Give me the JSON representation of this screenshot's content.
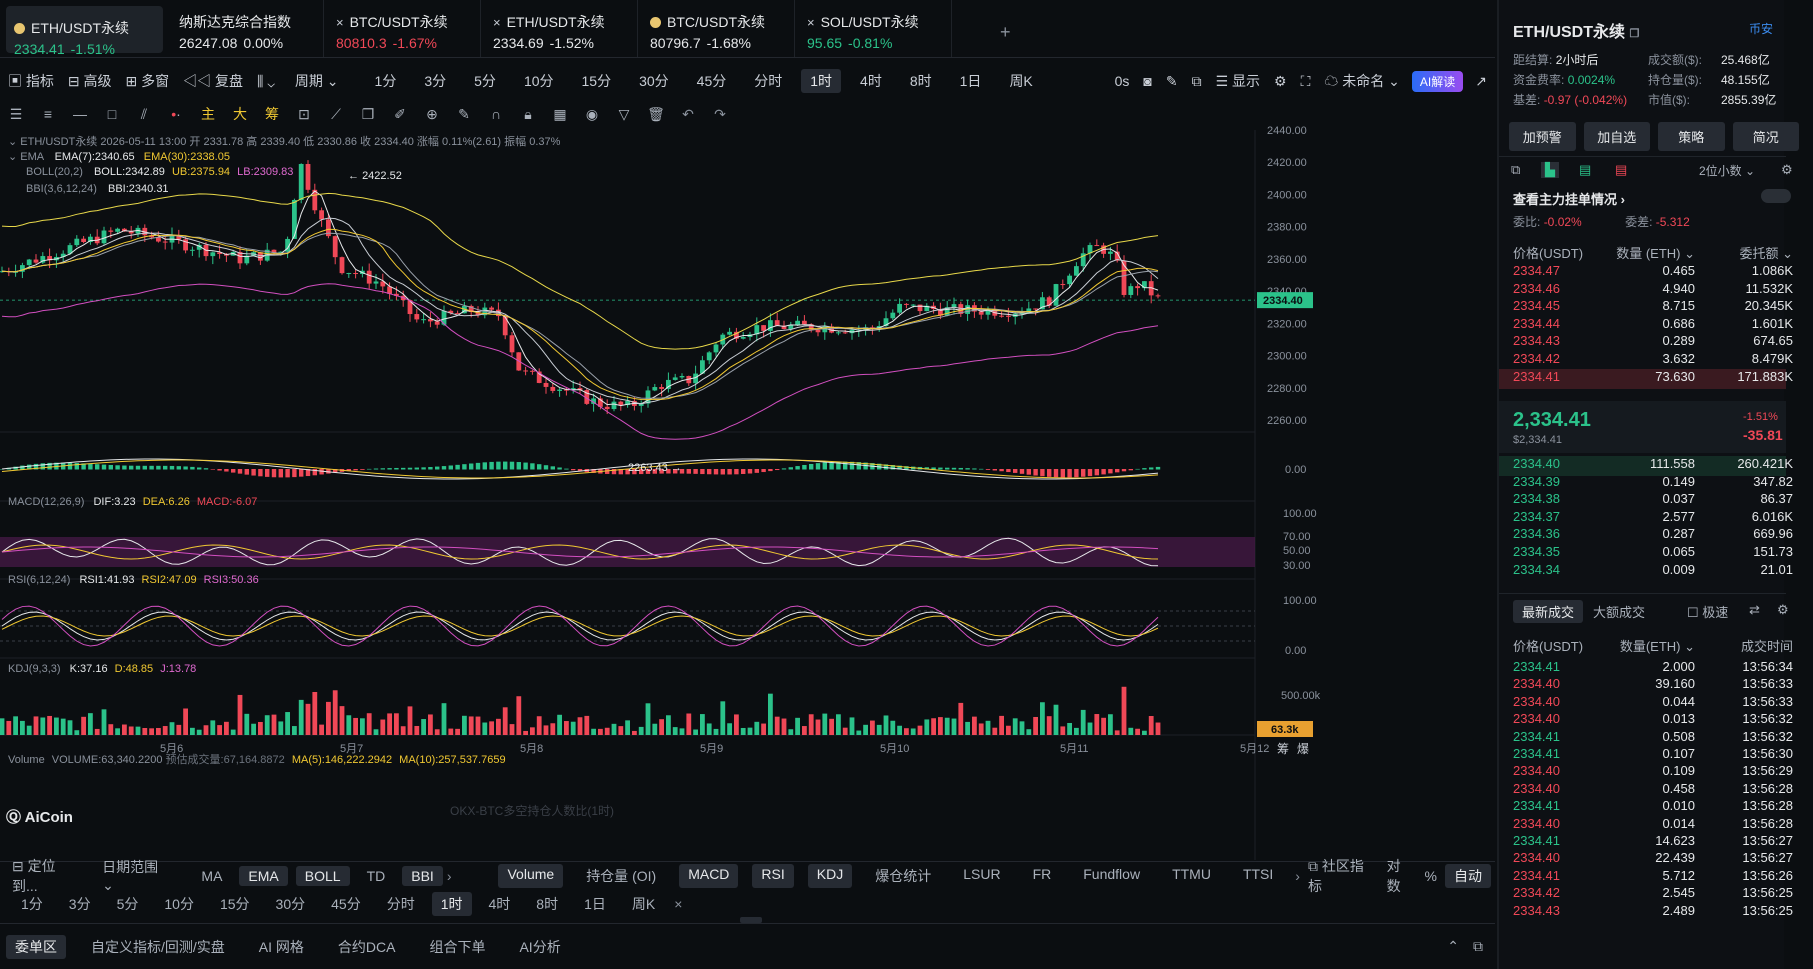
{
  "tabs": [
    {
      "name": "ETH/USDT永续",
      "price": "2334.41",
      "change": "-1.51%",
      "icon": "dot"
    },
    {
      "name": "纳斯达克综合指数",
      "price": "26247.08",
      "change": "0.00%",
      "icon": ""
    },
    {
      "name": "BTC/USDT永续",
      "price": "80810.3",
      "change": "-1.67%",
      "icon": "x"
    },
    {
      "name": "ETH/USDT永续",
      "price": "2334.69",
      "change": "-1.52%",
      "icon": "x"
    },
    {
      "name": "BTC/USDT永续",
      "price": "80796.7",
      "change": "-1.68%",
      "icon": "dot"
    },
    {
      "name": "SOL/USDT永续",
      "price": "95.65",
      "change": "-0.81%",
      "icon": "x"
    }
  ],
  "toolbar": {
    "indicators": "指标",
    "advanced": "高级",
    "multi": "多窗",
    "replay": "复盘",
    "period": "周期",
    "timeframes": [
      "1分",
      "3分",
      "5分",
      "10分",
      "15分",
      "30分",
      "45分",
      "分时",
      "1时",
      "4时",
      "8时",
      "1日",
      "周K"
    ],
    "active_tf": "1时",
    "os": "0s",
    "display": "显示",
    "unnamed": "未命名",
    "ai": "AI解读"
  },
  "drawing_tools": {
    "main": "主",
    "big": "大",
    "chip": "筹"
  },
  "legend": {
    "line1": "ETH/USDT永续  2026-05-11 13:00  开 2331.78  高 2339.40  低 2330.86  收 2334.40  涨幅 0.11%(2.61)  振幅 0.37%",
    "ema_label": "EMA",
    "ema7": "EMA(7):2340.65",
    "ema30": "EMA(30):2338.05",
    "boll_label": "BOLL(20,2)",
    "boll_mid": "BOLL:2342.89",
    "boll_ub": "UB:2375.94",
    "boll_lb": "LB:2309.83",
    "bbi_label": "BBI(3,6,12,24)",
    "bbi": "BBI:2340.31",
    "high_mark": "2422.52",
    "low_mark": "2263.43",
    "macd_label": "MACD(12,26,9)",
    "dif": "DIF:3.23",
    "dea": "DEA:6.26",
    "macd": "MACD:-6.07",
    "rsi_label": "RSI(6,12,24)",
    "rsi1": "RSI1:41.93",
    "rsi2": "RSI2:47.09",
    "rsi3": "RSI3:50.36",
    "kdj_label": "KDJ(9,3,3)",
    "k": "K:37.16",
    "d": "D:48.85",
    "j": "J:13.78",
    "vol_label": "Volume",
    "vol": "VOLUME:63,340.2200",
    "vol_est": "预估成交量:67,164.8872",
    "ma5": "MA(5):146,222.2942",
    "ma10": "MA(10):257,537.7659",
    "watermark": "OKX-BTC多空持仓人数比(1时)",
    "brand": "AiCoin"
  },
  "axis": {
    "price_ticks": [
      "2440.00",
      "2420.00",
      "2400.00",
      "2380.00",
      "2360.00",
      "2340.00",
      "2320.00",
      "2300.00",
      "2280.00",
      "2260.00"
    ],
    "current_price": "2334.40",
    "macd_ticks": [
      "0.00"
    ],
    "rsi_ticks": [
      "100.00",
      "70.00",
      "50.00",
      "30.00"
    ],
    "kdj_ticks": [
      "100.00",
      "0.00"
    ],
    "vol_ticks": [
      "500.00k"
    ],
    "vol_current": "63.3k",
    "dates": [
      "5月6",
      "5月7",
      "5月8",
      "5月9",
      "5月10",
      "5月11",
      "5月12"
    ],
    "chip": "筹",
    "burst": "爆"
  },
  "bottom": {
    "locate": "定位到...",
    "range": "日期范围",
    "main_ind": [
      "MA",
      "EMA",
      "BOLL",
      "TD",
      "BBI"
    ],
    "main_on": [
      "EMA",
      "BOLL",
      "BBI"
    ],
    "sub_ind": [
      "Volume",
      "持仓量 (OI)",
      "MACD",
      "RSI",
      "KDJ",
      "爆仓统计",
      "LSUR",
      "FR",
      "Fundflow",
      "TTMU",
      "TTSI"
    ],
    "sub_on": [
      "Volume",
      "MACD",
      "RSI",
      "KDJ"
    ],
    "community": "社区指标",
    "log": "对数",
    "pct": "%",
    "auto": "自动",
    "tfs": [
      "1分",
      "3分",
      "5分",
      "10分",
      "15分",
      "30分",
      "45分",
      "分时",
      "1时",
      "4时",
      "8时",
      "1日",
      "周K"
    ],
    "active_tf": "1时",
    "panels": [
      "委单区",
      "自定义指标/回测/实盘",
      "AI 网格",
      "合约DCA",
      "组合下单",
      "AI分析"
    ]
  },
  "right": {
    "title": "ETH/USDT永续",
    "exchange": "币安",
    "settle_label": "距结算:",
    "settle": "2小时后",
    "vol_label": "成交额($):",
    "vol": "25.468亿",
    "fund_label": "资金费率:",
    "fund": "0.0024%",
    "oi_label": "持仓量($):",
    "oi": "48.155亿",
    "basis_label": "基差:",
    "basis": "-0.97 (-0.042%)",
    "mcap_label": "市值($):",
    "mcap": "2855.39亿",
    "buttons": [
      "加预警",
      "加自选",
      "策略",
      "简况"
    ],
    "decimals": "2位小数",
    "watch": "查看主力挂单情况",
    "ratio_label": "委比:",
    "ratio": "-0.02%",
    "diff_label": "委差:",
    "diff": "-5.312",
    "ob_headers": [
      "价格(USDT)",
      "数量 (ETH)",
      "委托额"
    ],
    "asks": [
      [
        "2334.47",
        "0.465",
        "1.086K"
      ],
      [
        "2334.46",
        "4.940",
        "11.532K"
      ],
      [
        "2334.45",
        "8.715",
        "20.345K"
      ],
      [
        "2334.44",
        "0.686",
        "1.601K"
      ],
      [
        "2334.43",
        "0.289",
        "674.65"
      ],
      [
        "2334.42",
        "3.632",
        "8.479K"
      ],
      [
        "2334.41",
        "73.630",
        "171.883K"
      ]
    ],
    "last": "2,334.41",
    "last_usd": "$2,334.41",
    "last_pct": "-1.51%",
    "last_chg": "-35.81",
    "bids": [
      [
        "2334.40",
        "111.558",
        "260.421K"
      ],
      [
        "2334.39",
        "0.149",
        "347.82"
      ],
      [
        "2334.38",
        "0.037",
        "86.37"
      ],
      [
        "2334.37",
        "2.577",
        "6.016K"
      ],
      [
        "2334.36",
        "0.287",
        "669.96"
      ],
      [
        "2334.35",
        "0.065",
        "151.73"
      ],
      [
        "2334.34",
        "0.009",
        "21.01"
      ]
    ],
    "trades_tab": "最新成交",
    "big_tab": "大额成交",
    "fast": "极速",
    "tr_headers": [
      "价格(USDT)",
      "数量(ETH)",
      "成交时间"
    ],
    "trades": [
      [
        "2334.41",
        "2.000",
        "13:56:34",
        "g"
      ],
      [
        "2334.40",
        "39.160",
        "13:56:33",
        "r"
      ],
      [
        "2334.40",
        "0.044",
        "13:56:33",
        "r"
      ],
      [
        "2334.40",
        "0.013",
        "13:56:32",
        "r"
      ],
      [
        "2334.41",
        "0.508",
        "13:56:32",
        "g"
      ],
      [
        "2334.41",
        "0.107",
        "13:56:30",
        "g"
      ],
      [
        "2334.40",
        "0.109",
        "13:56:29",
        "r"
      ],
      [
        "2334.40",
        "0.458",
        "13:56:28",
        "r"
      ],
      [
        "2334.41",
        "0.010",
        "13:56:28",
        "g"
      ],
      [
        "2334.40",
        "0.014",
        "13:56:28",
        "r"
      ],
      [
        "2334.41",
        "14.623",
        "13:56:27",
        "g"
      ],
      [
        "2334.40",
        "22.439",
        "13:56:27",
        "r"
      ],
      [
        "2334.41",
        "5.712",
        "13:56:26",
        "r"
      ],
      [
        "2334.42",
        "2.545",
        "13:56:25",
        "r"
      ],
      [
        "2334.43",
        "2.489",
        "13:56:25",
        "r"
      ]
    ]
  },
  "colors": {
    "up": "#2bc28a",
    "down": "#f04857",
    "bg": "#0b0e11",
    "ema7": "#e6e8ea",
    "ema30": "#f0c832",
    "lb": "#e06ad0"
  }
}
